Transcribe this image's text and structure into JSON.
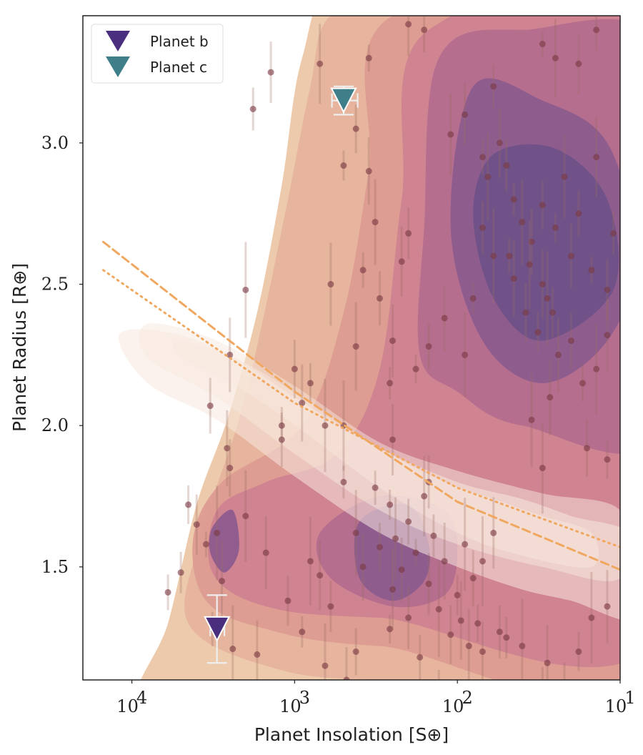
{
  "chart_data": {
    "type": "scatter",
    "title": "",
    "xlabel": "Planet Insolation [S⊕]",
    "ylabel": "Planet Radius [R⊕]",
    "x_scale": "log",
    "x_reversed": true,
    "xlim": [
      20000,
      10
    ],
    "ylim": [
      1.1,
      3.45
    ],
    "x_ticks": [
      10000,
      1000,
      100,
      10
    ],
    "x_tick_labels": [
      "10",
      "10",
      "10",
      "10"
    ],
    "x_tick_exponents": [
      "4",
      "3",
      "2",
      "1"
    ],
    "y_ticks": [
      1.5,
      2.0,
      2.5,
      3.0
    ],
    "y_tick_labels": [
      "1.5",
      "2.0",
      "2.5",
      "3.0"
    ],
    "grid": false,
    "legend_position": "top-left",
    "colors": {
      "planet_b": "#4a2f7f",
      "planet_c": "#3f7f8a",
      "sample_point": "#7a3a44",
      "valley_line": "#f0a860",
      "kde_levels": [
        "#ecc8a8",
        "#e6b49c",
        "#dd9c92",
        "#cf8290",
        "#b46d8e",
        "#8e5c8e",
        "#6e5288"
      ]
    },
    "series": [
      {
        "name": "Planet b",
        "marker": "triangle-down",
        "points": [
          {
            "x": 3000,
            "y": 1.28,
            "y_err": 0.12,
            "x_err": 300
          }
        ]
      },
      {
        "name": "Planet c",
        "marker": "triangle-down",
        "points": [
          {
            "x": 500,
            "y": 3.15,
            "y_err": 0.05,
            "x_err": 90
          }
        ]
      }
    ],
    "valley_lines": [
      {
        "style": "dashed",
        "points": [
          [
            15000,
            2.65
          ],
          [
            1000,
            2.12
          ],
          [
            100,
            1.73
          ],
          [
            10,
            1.49
          ]
        ]
      },
      {
        "style": "dotted",
        "points": [
          [
            15000,
            2.55
          ],
          [
            1000,
            2.08
          ],
          [
            100,
            1.78
          ],
          [
            10,
            1.57
          ]
        ]
      }
    ],
    "sample": [
      [
        3500,
        1.58
      ],
      [
        2800,
        1.45
      ],
      [
        4000,
        1.65
      ],
      [
        5000,
        1.48
      ],
      [
        3000,
        1.62
      ],
      [
        2600,
        1.92
      ],
      [
        2500,
        1.85
      ],
      [
        4500,
        1.72
      ],
      [
        2000,
        1.68
      ],
      [
        1500,
        1.55
      ],
      [
        1200,
        1.95
      ],
      [
        6000,
        1.41
      ],
      [
        800,
        1.52
      ],
      [
        700,
        1.47
      ],
      [
        600,
        1.36
      ],
      [
        500,
        1.8
      ],
      [
        420,
        1.62
      ],
      [
        380,
        1.5
      ],
      [
        300,
        1.57
      ],
      [
        260,
        1.72
      ],
      [
        240,
        1.6
      ],
      [
        220,
        1.49
      ],
      [
        200,
        1.66
      ],
      [
        180,
        1.55
      ],
      [
        160,
        1.75
      ],
      [
        150,
        1.44
      ],
      [
        140,
        1.61
      ],
      [
        130,
        1.35
      ],
      [
        120,
        1.52
      ],
      [
        110,
        1.26
      ],
      [
        100,
        1.4
      ],
      [
        90,
        1.58
      ],
      [
        85,
        1.22
      ],
      [
        80,
        1.46
      ],
      [
        75,
        1.3
      ],
      [
        70,
        1.52
      ],
      [
        60,
        1.62
      ],
      [
        55,
        1.27
      ],
      [
        3200,
        1.28
      ],
      [
        2400,
        1.21
      ],
      [
        1700,
        1.19
      ],
      [
        1100,
        1.38
      ],
      [
        900,
        1.27
      ],
      [
        650,
        1.15
      ],
      [
        480,
        1.1
      ],
      [
        420,
        1.2
      ],
      [
        260,
        1.28
      ],
      [
        250,
        1.42
      ],
      [
        200,
        1.32
      ],
      [
        170,
        1.18
      ],
      [
        130,
        1.09
      ],
      [
        95,
        1.31
      ],
      [
        70,
        1.2
      ],
      [
        50,
        1.25
      ],
      [
        40,
        1.22
      ],
      [
        28,
        1.16
      ],
      [
        22,
        1.06
      ],
      [
        18,
        1.2
      ],
      [
        15,
        1.32
      ],
      [
        12,
        1.36
      ],
      [
        30,
        1.05
      ],
      [
        70,
        2.95
      ],
      [
        65,
        2.88
      ],
      [
        55,
        3.0
      ],
      [
        50,
        2.92
      ],
      [
        45,
        2.8
      ],
      [
        40,
        2.72
      ],
      [
        35,
        2.65
      ],
      [
        30,
        2.78
      ],
      [
        25,
        2.7
      ],
      [
        22,
        2.88
      ],
      [
        20,
        2.6
      ],
      [
        18,
        2.75
      ],
      [
        15,
        2.55
      ],
      [
        14,
        2.95
      ],
      [
        12,
        2.48
      ],
      [
        11,
        2.68
      ],
      [
        60,
        2.6
      ],
      [
        45,
        2.52
      ],
      [
        38,
        2.4
      ],
      [
        32,
        2.33
      ],
      [
        28,
        2.45
      ],
      [
        24,
        2.25
      ],
      [
        20,
        2.3
      ],
      [
        17,
        2.15
      ],
      [
        14,
        2.2
      ],
      [
        12,
        2.32
      ],
      [
        70,
        2.7
      ],
      [
        48,
        2.6
      ],
      [
        36,
        2.57
      ],
      [
        30,
        2.5
      ],
      [
        26,
        2.4
      ],
      [
        80,
        2.45
      ],
      [
        90,
        2.25
      ],
      [
        120,
        2.38
      ],
      [
        150,
        2.28
      ],
      [
        180,
        2.2
      ],
      [
        110,
        3.03
      ],
      [
        90,
        3.1
      ],
      [
        60,
        3.2
      ],
      [
        30,
        3.35
      ],
      [
        25,
        3.3
      ],
      [
        18,
        3.28
      ],
      [
        14,
        3.4
      ],
      [
        35,
        2.02
      ],
      [
        27,
        2.1
      ],
      [
        16,
        1.92
      ],
      [
        12,
        1.88
      ],
      [
        30,
        1.85
      ],
      [
        250,
        2.3
      ],
      [
        300,
        2.45
      ],
      [
        380,
        2.55
      ],
      [
        420,
        2.28
      ],
      [
        220,
        2.58
      ],
      [
        200,
        2.68
      ],
      [
        260,
        2.15
      ],
      [
        320,
        2.72
      ],
      [
        350,
        2.9
      ],
      [
        420,
        3.05
      ],
      [
        500,
        2.92
      ],
      [
        600,
        2.5
      ],
      [
        200,
        3.42
      ],
      [
        160,
        3.4
      ],
      [
        350,
        3.3
      ],
      [
        700,
        3.28
      ],
      [
        1400,
        3.25
      ],
      [
        1800,
        3.12
      ],
      [
        2000,
        2.48
      ],
      [
        900,
        2.08
      ],
      [
        1000,
        2.2
      ],
      [
        800,
        2.15
      ],
      [
        650,
        2.0
      ],
      [
        2500,
        2.25
      ],
      [
        3300,
        2.07
      ],
      [
        1200,
        2.0
      ],
      [
        500,
        2.0
      ],
      [
        250,
        1.95
      ],
      [
        150,
        1.8
      ],
      [
        320,
        1.78
      ]
    ]
  }
}
